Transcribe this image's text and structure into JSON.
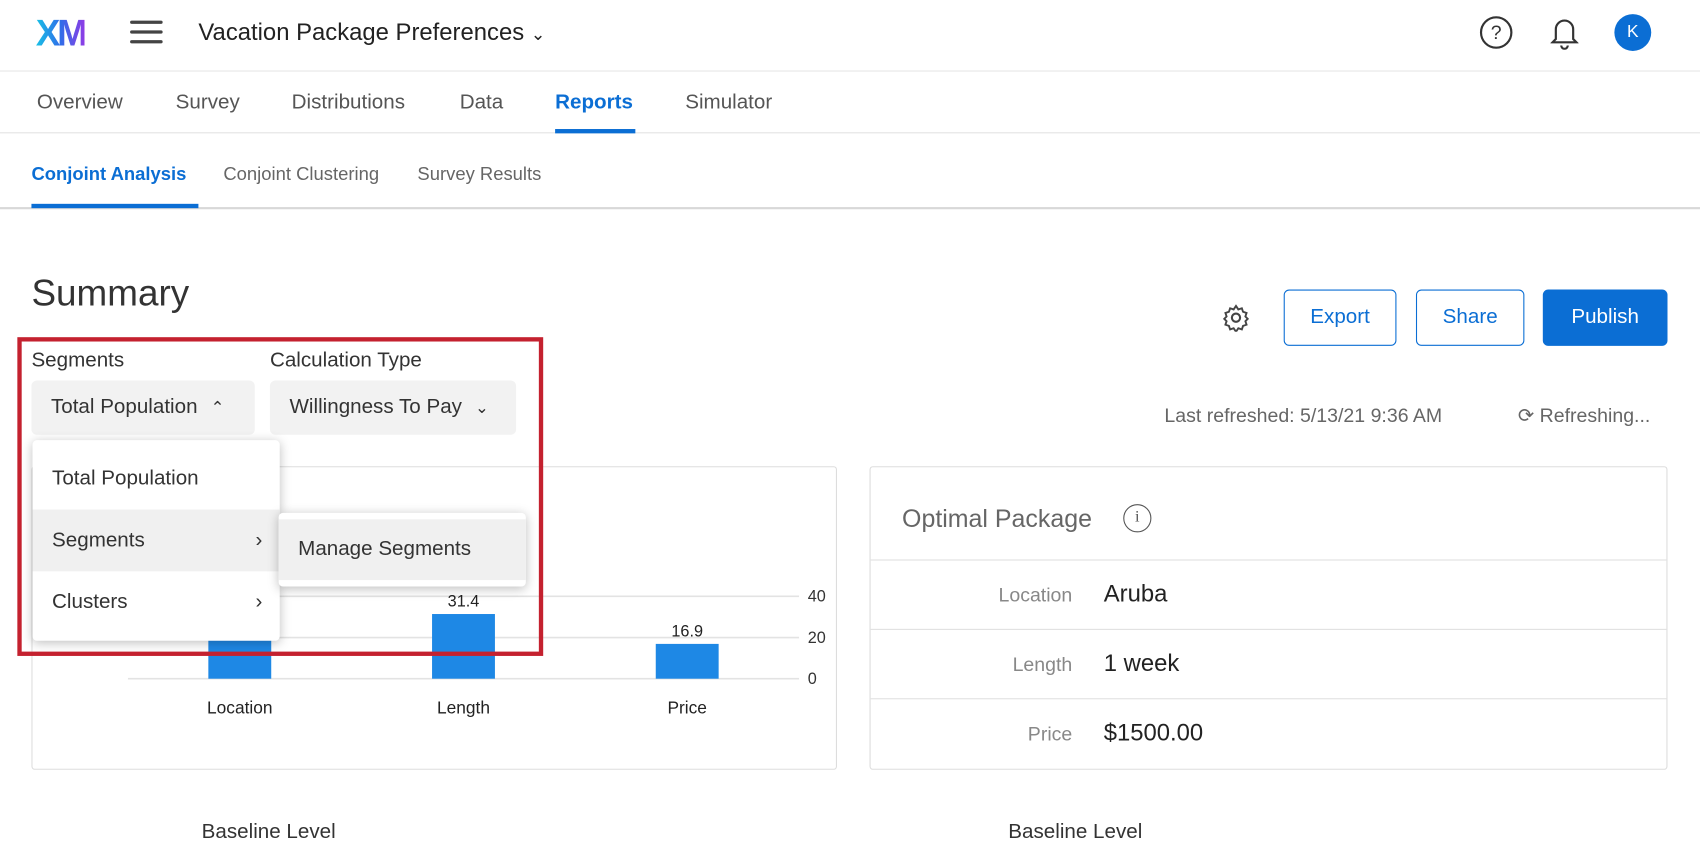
{
  "header": {
    "logo": "XM",
    "project_title": "Vacation Package Preferences",
    "help_icon": "?",
    "avatar_initial": "K"
  },
  "nav": {
    "tabs": [
      {
        "label": "Overview"
      },
      {
        "label": "Survey"
      },
      {
        "label": "Distributions"
      },
      {
        "label": "Data"
      },
      {
        "label": "Reports",
        "active": true
      },
      {
        "label": "Simulator"
      }
    ]
  },
  "subnav": {
    "tabs": [
      {
        "label": "Conjoint Analysis",
        "active": true
      },
      {
        "label": "Conjoint Clustering"
      },
      {
        "label": "Survey Results"
      }
    ]
  },
  "page": {
    "title": "Summary",
    "export": "Export",
    "share": "Share",
    "publish": "Publish",
    "last_refreshed": "Last refreshed: 5/13/21 9:36 AM",
    "refreshing": "Refreshing..."
  },
  "filters": {
    "segments_label": "Segments",
    "segments_value": "Total Population",
    "calc_label": "Calculation Type",
    "calc_value": "Willingness To Pay"
  },
  "dropdown": {
    "items": [
      {
        "label": "Total Population"
      },
      {
        "label": "Segments",
        "has_submenu": true,
        "hovered": true
      },
      {
        "label": "Clusters",
        "has_submenu": true
      }
    ],
    "submenu": {
      "items": [
        {
          "label": "Manage Segments"
        }
      ]
    }
  },
  "chart_data": {
    "type": "bar",
    "categories": [
      "Location",
      "Length",
      "Price"
    ],
    "values": [
      null,
      31.4,
      16.9
    ],
    "data_labels": [
      "",
      "31.4",
      "16.9"
    ],
    "y_ticks": [
      "0",
      "20",
      "40"
    ],
    "ylim": [
      0,
      40
    ],
    "grid": true,
    "color": "#1e88e5"
  },
  "optimal": {
    "title": "Optimal Package",
    "rows": [
      {
        "key": "Location",
        "value": "Aruba"
      },
      {
        "key": "Length",
        "value": "1 week"
      },
      {
        "key": "Price",
        "value": "$1500.00"
      }
    ]
  },
  "footer": {
    "left": "Baseline Level",
    "right": "Baseline Level"
  },
  "colors": {
    "accent": "#0b6ed4",
    "highlight": "#c4212f"
  }
}
